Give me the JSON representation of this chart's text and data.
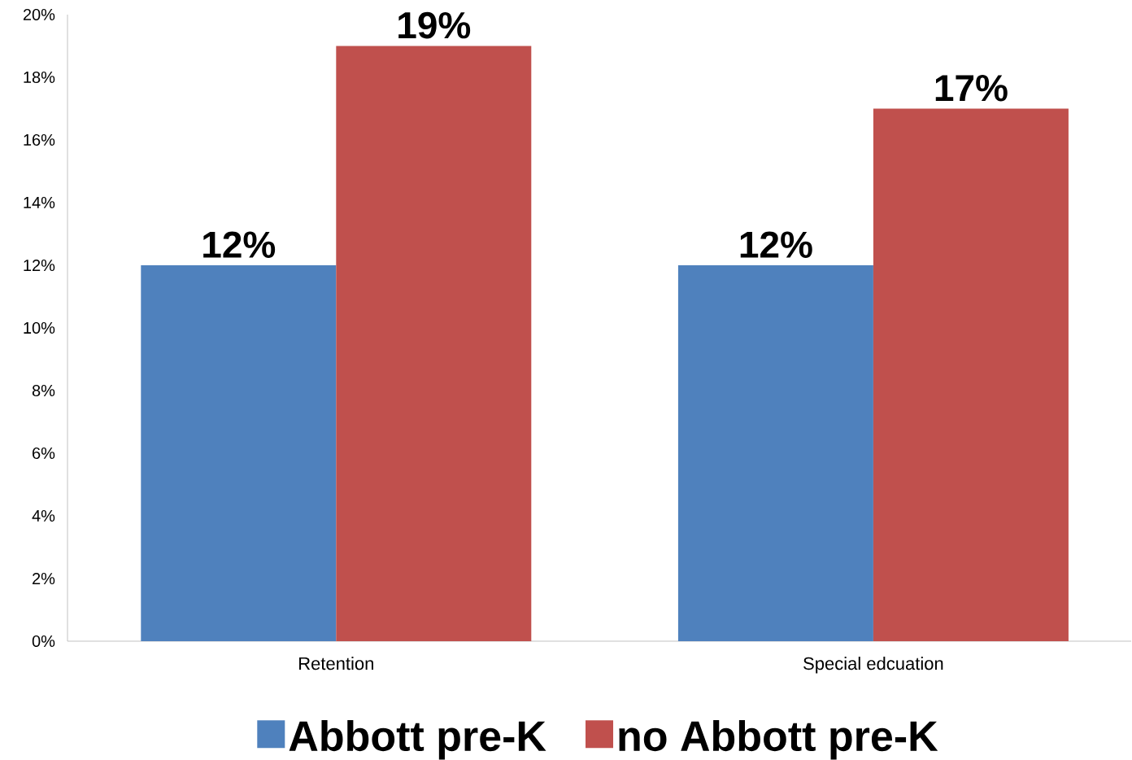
{
  "chart_data": {
    "type": "bar",
    "categories": [
      "Retention",
      "Special edcuation"
    ],
    "series": [
      {
        "name": "Abbott pre-K",
        "color": "#4f81bd",
        "values": [
          12,
          12
        ],
        "value_labels": [
          "12%",
          "12%"
        ]
      },
      {
        "name": "no Abbott pre-K",
        "color": "#c0504d",
        "values": [
          19,
          17
        ],
        "value_labels": [
          "19%",
          "17%"
        ]
      }
    ],
    "ylim": [
      0,
      20
    ],
    "yticks": [
      {
        "value": 0,
        "label": "0%"
      },
      {
        "value": 2,
        "label": "2%"
      },
      {
        "value": 4,
        "label": "4%"
      },
      {
        "value": 6,
        "label": "6%"
      },
      {
        "value": 8,
        "label": "8%"
      },
      {
        "value": 10,
        "label": "10%"
      },
      {
        "value": 12,
        "label": "12%"
      },
      {
        "value": 14,
        "label": "14%"
      },
      {
        "value": 16,
        "label": "16%"
      },
      {
        "value": 18,
        "label": "18%"
      },
      {
        "value": 20,
        "label": "20%"
      }
    ],
    "grid": false,
    "legend": "bottom"
  }
}
